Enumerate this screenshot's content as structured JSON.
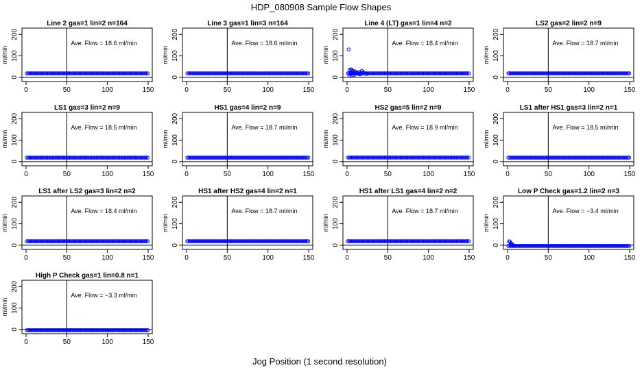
{
  "chart_data": {
    "type": "scatter",
    "title": "HDP_080908  Sample Flow Shapes",
    "xlabel": "Jog Position (1 second resolution)",
    "ylabel": "ml/min",
    "xlim": [
      0,
      150
    ],
    "ylim": [
      -10,
      220
    ],
    "xticks": [
      "0",
      "50",
      "100",
      "150"
    ],
    "yticks": [
      "0",
      "100",
      "200"
    ],
    "vline_x": 50,
    "ref_y": 0,
    "point_color": "#0000ff",
    "panels": [
      {
        "title": "Line 2 gas=1 lin=2 n=164",
        "annotation": "Ave. Flow =  18.6  ml/min",
        "baseline": 18.6,
        "early_points": []
      },
      {
        "title": "Line 3 gas=1 lin=3 n=164",
        "annotation": "Ave. Flow =  18.6  ml/min",
        "baseline": 18.6,
        "early_points": []
      },
      {
        "title": "Line 4 (LT) gas=1 lin=4 n=2",
        "annotation": "Ave. Flow =  18.4  ml/min",
        "baseline": 18.4,
        "early_points": [
          [
            2,
            130
          ],
          [
            3,
            35
          ],
          [
            5,
            37
          ],
          [
            6,
            32
          ],
          [
            7,
            30
          ],
          [
            8,
            20
          ],
          [
            9,
            12
          ],
          [
            10,
            28
          ],
          [
            12,
            22
          ],
          [
            14,
            16
          ],
          [
            16,
            14
          ],
          [
            18,
            30
          ],
          [
            20,
            24
          ],
          [
            22,
            18
          ],
          [
            3,
            8
          ],
          [
            4,
            15
          ],
          [
            6,
            10
          ],
          [
            8,
            26
          ],
          [
            11,
            20
          ],
          [
            15,
            25
          ],
          [
            19,
            20
          ],
          [
            24,
            16
          ]
        ]
      },
      {
        "title": "LS2 gas=2 lin=2 n=9",
        "annotation": "Ave. Flow =  18.7  ml/min",
        "baseline": 18.7,
        "early_points": []
      },
      {
        "title": "LS1 gas=3 lin=2 n=9",
        "annotation": "Ave. Flow =  18.5  ml/min",
        "baseline": 18.5,
        "early_points": []
      },
      {
        "title": "HS1 gas=4 lin=2 n=9",
        "annotation": "Ave. Flow =  18.7  ml/min",
        "baseline": 18.7,
        "early_points": []
      },
      {
        "title": "HS2 gas=5 lin=2 n=9",
        "annotation": "Ave. Flow =  18.9  ml/min",
        "baseline": 18.9,
        "early_points": []
      },
      {
        "title": "LS1 after HS1 gas=3 lin=2 n=1",
        "annotation": "Ave. Flow =  18.5  ml/min",
        "baseline": 18.5,
        "early_points": []
      },
      {
        "title": "LS1 after LS2 gas=3 lin=2 n=2",
        "annotation": "Ave. Flow =  18.4  ml/min",
        "baseline": 18.4,
        "early_points": []
      },
      {
        "title": "HS1 after HS2 gas=4 lin=2 n=1",
        "annotation": "Ave. Flow =  18.7  ml/min",
        "baseline": 18.7,
        "early_points": []
      },
      {
        "title": "HS1 after LS1 gas=4 lin=2 n=2",
        "annotation": "Ave. Flow =  18.7  ml/min",
        "baseline": 18.7,
        "early_points": []
      },
      {
        "title": "Low P Check gas=1.2 lin=2 n=3",
        "annotation": "Ave. Flow =  −3.4  ml/min",
        "baseline": -3.4,
        "early_points": [
          [
            2,
            18
          ],
          [
            3,
            15
          ],
          [
            4,
            10
          ],
          [
            5,
            6
          ],
          [
            6,
            2
          ],
          [
            7,
            -1
          ],
          [
            8,
            -2
          ]
        ]
      },
      {
        "title": "High P Check gas=1 lin=0.8 n=1",
        "annotation": "Ave. Flow =  −3.3  ml/min",
        "baseline": -3.3,
        "early_points": []
      }
    ]
  }
}
